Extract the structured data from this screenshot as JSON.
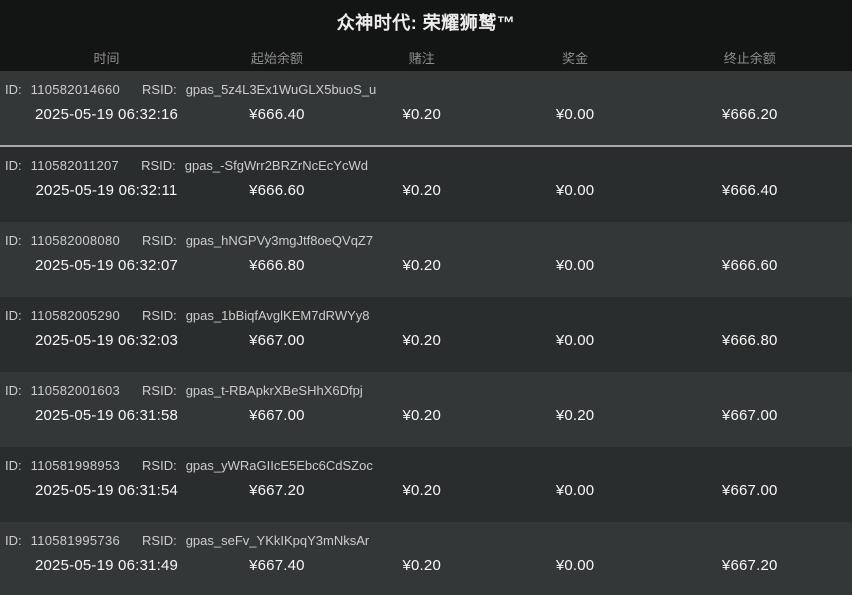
{
  "title": "众神时代: 荣耀狮鹫™",
  "columns": [
    "时间",
    "起始余额",
    "赌注",
    "奖金",
    "终止余额"
  ],
  "labels": {
    "id": "ID:",
    "rsid": "RSID:"
  },
  "rows": [
    {
      "id": "110582014660",
      "rsid": "gpas_5z4L3Ex1WuGLX5buoS_u",
      "time": "2025-05-19 06:32:16",
      "start": "¥666.40",
      "bet": "¥0.20",
      "win": "¥0.00",
      "end": "¥666.20"
    },
    {
      "id": "110582011207",
      "rsid": "gpas_-SfgWrr2BRZrNcEcYcWd",
      "time": "2025-05-19 06:32:11",
      "start": "¥666.60",
      "bet": "¥0.20",
      "win": "¥0.00",
      "end": "¥666.40"
    },
    {
      "id": "110582008080",
      "rsid": "gpas_hNGPVy3mgJtf8oeQVqZ7",
      "time": "2025-05-19 06:32:07",
      "start": "¥666.80",
      "bet": "¥0.20",
      "win": "¥0.00",
      "end": "¥666.60"
    },
    {
      "id": "110582005290",
      "rsid": "gpas_1bBiqfAvglKEM7dRWYy8",
      "time": "2025-05-19 06:32:03",
      "start": "¥667.00",
      "bet": "¥0.20",
      "win": "¥0.00",
      "end": "¥666.80"
    },
    {
      "id": "110582001603",
      "rsid": "gpas_t-RBApkrXBeSHhX6Dfpj",
      "time": "2025-05-19 06:31:58",
      "start": "¥667.00",
      "bet": "¥0.20",
      "win": "¥0.20",
      "end": "¥667.00"
    },
    {
      "id": "110581998953",
      "rsid": "gpas_yWRaGIIcE5Ebc6CdSZoc",
      "time": "2025-05-19 06:31:54",
      "start": "¥667.20",
      "bet": "¥0.20",
      "win": "¥0.00",
      "end": "¥667.00"
    },
    {
      "id": "110581995736",
      "rsid": "gpas_seFv_YKkIKpqY3mNksAr",
      "time": "2025-05-19 06:31:49",
      "start": "¥667.40",
      "bet": "¥0.20",
      "win": "¥0.00",
      "end": "¥667.20"
    }
  ],
  "colors": {
    "header_bg": "#131414",
    "row_light": "#333738",
    "row_dark": "#2a2d2e",
    "separator": "#a9a9a9",
    "title_color": "#ededed",
    "header_text": "#8d8d8d",
    "id_text": "#cdcdcd",
    "value_text": "#f7f7f7"
  }
}
